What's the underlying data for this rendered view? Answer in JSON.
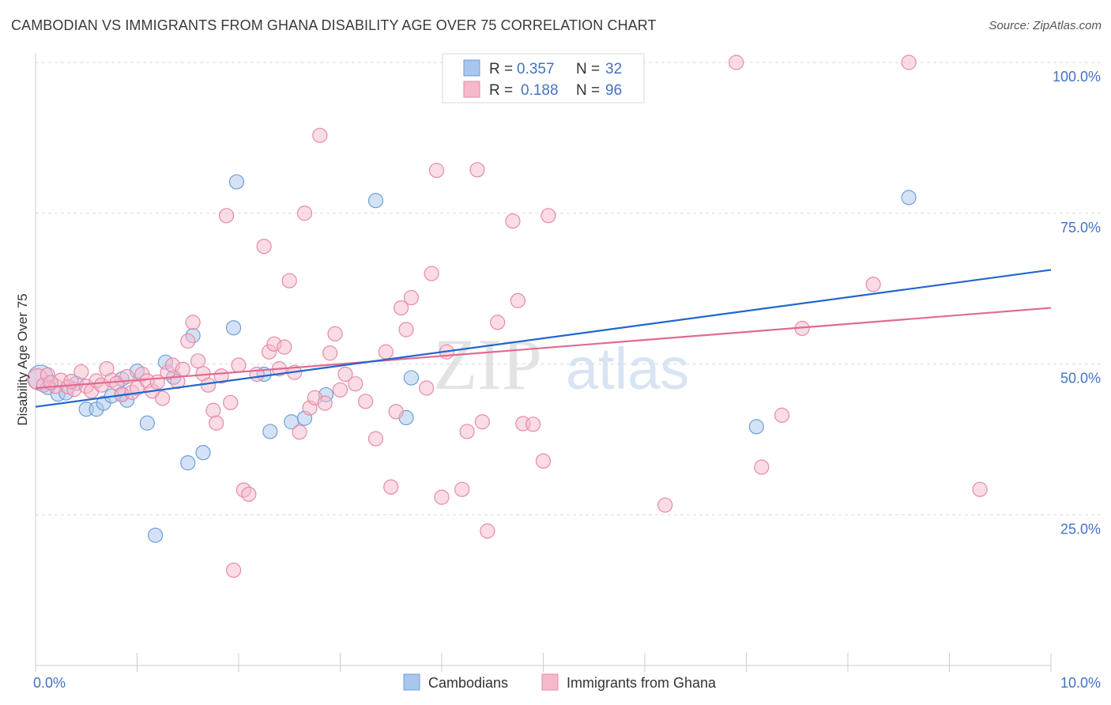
{
  "title": "CAMBODIAN VS IMMIGRANTS FROM GHANA DISABILITY AGE OVER 75 CORRELATION CHART",
  "source": "Source: ZipAtlas.com",
  "watermark": {
    "zip": "ZIP",
    "atlas": "atlas"
  },
  "colors": {
    "blue_fill": "#a9c6ec",
    "blue_stroke": "#6f9fd8",
    "blue_line": "#2266cc",
    "pink_fill": "#f6b9cb",
    "pink_stroke": "#e68aa6",
    "pink_line": "#e06a94",
    "grid": "#d9d9d9",
    "axis_text": "#4472c4"
  },
  "legend": {
    "rows": [
      {
        "r_label": "R =",
        "r_value": "0.357",
        "n_label": "N =",
        "n_value": "32"
      },
      {
        "r_label": "R =",
        "r_value": "0.188",
        "n_label": "N =",
        "n_value": "96"
      }
    ]
  },
  "chart_data": {
    "type": "scatter",
    "xlabel": "",
    "ylabel": "Disability Age Over 75",
    "xlim": [
      0,
      10
    ],
    "ylim": [
      0,
      100
    ],
    "x_tick_labels": [
      "0.0%",
      "10.0%"
    ],
    "y_ticks": [
      25,
      50,
      75,
      100
    ],
    "y_tick_labels": [
      "25.0%",
      "50.0%",
      "75.0%",
      "100.0%"
    ],
    "series": [
      {
        "name": "Cambodians",
        "r": 0.357,
        "n": 32,
        "trend": {
          "x": [
            0,
            10
          ],
          "y": [
            42.9,
            65.6
          ]
        },
        "points": [
          [
            0.05,
            47.7,
            16
          ],
          [
            0.12,
            46.1,
            9
          ],
          [
            0.22,
            45.0,
            9
          ],
          [
            0.3,
            45.2,
            9
          ],
          [
            0.4,
            46.8,
            9
          ],
          [
            0.5,
            42.5,
            9
          ],
          [
            0.6,
            42.5,
            9
          ],
          [
            0.67,
            43.5,
            9
          ],
          [
            0.75,
            44.7,
            9
          ],
          [
            0.85,
            45.0,
            9
          ],
          [
            0.9,
            44.0,
            9
          ],
          [
            1.0,
            48.8,
            9
          ],
          [
            1.1,
            40.2,
            9
          ],
          [
            1.18,
            21.6,
            9
          ],
          [
            1.28,
            50.3,
            9
          ],
          [
            1.36,
            47.8,
            9
          ],
          [
            1.5,
            33.6,
            9
          ],
          [
            1.55,
            54.7,
            9
          ],
          [
            1.65,
            35.3,
            9
          ],
          [
            1.95,
            56.0,
            9
          ],
          [
            1.98,
            80.2,
            9
          ],
          [
            2.25,
            48.3,
            9
          ],
          [
            2.31,
            38.8,
            9
          ],
          [
            2.52,
            40.4,
            9
          ],
          [
            2.65,
            41.0,
            9
          ],
          [
            2.86,
            44.9,
            9
          ],
          [
            3.35,
            77.1,
            9
          ],
          [
            3.65,
            41.1,
            9
          ],
          [
            3.7,
            47.7,
            9
          ],
          [
            0.85,
            47.5,
            9
          ],
          [
            7.1,
            39.6,
            9
          ],
          [
            8.6,
            77.6,
            9
          ]
        ]
      },
      {
        "name": "Immigrants from Ghana",
        "r": 0.188,
        "n": 96,
        "trend": {
          "x": [
            0,
            10
          ],
          "y": [
            46.0,
            59.3
          ]
        },
        "points": [
          [
            0.02,
            47.5,
            13
          ],
          [
            0.08,
            46.5,
            9
          ],
          [
            0.12,
            48.2,
            9
          ],
          [
            0.2,
            46.3,
            9
          ],
          [
            0.25,
            47.3,
            9
          ],
          [
            0.32,
            46.2,
            9
          ],
          [
            0.38,
            45.8,
            9
          ],
          [
            0.45,
            48.7,
            9
          ],
          [
            0.5,
            46.3,
            9
          ],
          [
            0.55,
            45.5,
            9
          ],
          [
            0.6,
            47.2,
            9
          ],
          [
            0.65,
            46.5,
            9
          ],
          [
            0.7,
            49.2,
            9
          ],
          [
            0.75,
            47.3,
            9
          ],
          [
            0.8,
            46.8,
            9
          ],
          [
            0.85,
            44.9,
            9
          ],
          [
            0.9,
            47.9,
            9
          ],
          [
            0.95,
            45.3,
            9
          ],
          [
            1.0,
            46.0,
            9
          ],
          [
            1.05,
            48.3,
            9
          ],
          [
            1.1,
            47.2,
            9
          ],
          [
            1.15,
            45.5,
            9
          ],
          [
            1.2,
            47.0,
            9
          ],
          [
            1.25,
            44.3,
            9
          ],
          [
            1.3,
            48.6,
            9
          ],
          [
            1.35,
            49.8,
            9
          ],
          [
            1.4,
            47.1,
            9
          ],
          [
            1.45,
            49.1,
            9
          ],
          [
            1.5,
            53.8,
            9
          ],
          [
            1.55,
            56.9,
            9
          ],
          [
            1.6,
            50.5,
            9
          ],
          [
            1.65,
            48.4,
            9
          ],
          [
            1.7,
            46.5,
            9
          ],
          [
            1.75,
            42.3,
            9
          ],
          [
            1.78,
            40.2,
            9
          ],
          [
            1.83,
            48.0,
            9
          ],
          [
            1.88,
            74.6,
            9
          ],
          [
            1.92,
            43.6,
            9
          ],
          [
            1.95,
            15.8,
            9
          ],
          [
            2.0,
            49.8,
            9
          ],
          [
            2.05,
            29.1,
            9
          ],
          [
            2.1,
            28.4,
            9
          ],
          [
            2.18,
            48.3,
            9
          ],
          [
            2.25,
            69.5,
            9
          ],
          [
            2.3,
            52.0,
            9
          ],
          [
            2.35,
            53.3,
            9
          ],
          [
            2.4,
            49.2,
            9
          ],
          [
            2.45,
            52.8,
            9
          ],
          [
            2.5,
            63.8,
            9
          ],
          [
            2.55,
            48.6,
            9
          ],
          [
            2.6,
            38.7,
            9
          ],
          [
            2.65,
            75.0,
            9
          ],
          [
            2.7,
            42.7,
            9
          ],
          [
            2.75,
            44.4,
            9
          ],
          [
            2.8,
            87.9,
            9
          ],
          [
            2.85,
            43.5,
            9
          ],
          [
            2.9,
            51.8,
            9
          ],
          [
            2.95,
            55.0,
            9
          ],
          [
            3.0,
            45.7,
            9
          ],
          [
            3.05,
            48.3,
            9
          ],
          [
            3.15,
            46.7,
            9
          ],
          [
            3.25,
            43.8,
            9
          ],
          [
            3.35,
            37.6,
            9
          ],
          [
            3.45,
            52.0,
            9
          ],
          [
            3.5,
            29.6,
            9
          ],
          [
            3.55,
            42.1,
            9
          ],
          [
            3.6,
            59.3,
            9
          ],
          [
            3.65,
            55.7,
            9
          ],
          [
            3.7,
            61.0,
            9
          ],
          [
            3.85,
            46.0,
            9
          ],
          [
            3.9,
            65.0,
            9
          ],
          [
            3.95,
            82.1,
            9
          ],
          [
            4.0,
            27.9,
            9
          ],
          [
            4.05,
            52.0,
            9
          ],
          [
            4.2,
            29.2,
            9
          ],
          [
            4.25,
            38.8,
            9
          ],
          [
            4.35,
            82.2,
            9
          ],
          [
            4.4,
            40.4,
            9
          ],
          [
            4.45,
            22.3,
            9
          ],
          [
            4.55,
            56.9,
            9
          ],
          [
            4.7,
            73.7,
            9
          ],
          [
            4.75,
            60.5,
            9
          ],
          [
            4.8,
            40.1,
            9
          ],
          [
            4.9,
            40.0,
            9
          ],
          [
            5.0,
            33.9,
            9
          ],
          [
            5.05,
            74.6,
            9
          ],
          [
            6.2,
            26.6,
            9
          ],
          [
            6.9,
            100.0,
            9
          ],
          [
            7.15,
            32.9,
            9
          ],
          [
            7.35,
            41.5,
            9
          ],
          [
            7.55,
            55.9,
            9
          ],
          [
            8.25,
            63.2,
            9
          ],
          [
            8.6,
            100.0,
            9
          ],
          [
            9.3,
            29.2,
            9
          ],
          [
            0.35,
            47.1,
            9
          ],
          [
            0.15,
            46.9,
            9
          ]
        ]
      }
    ]
  },
  "bottom_legend": [
    "Cambodians",
    "Immigrants from Ghana"
  ]
}
